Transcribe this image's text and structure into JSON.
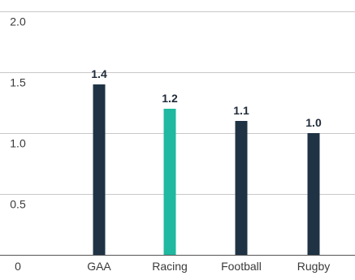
{
  "chart_data": {
    "type": "bar",
    "categories": [
      "GAA",
      "Racing",
      "Football",
      "Rugby"
    ],
    "values": [
      1.4,
      1.2,
      1.1,
      1.0
    ],
    "data_labels": [
      "1.4",
      "1.2",
      "1.1",
      "1.0"
    ],
    "y_ticks": [
      {
        "value": 0,
        "label": "0"
      },
      {
        "value": 0.5,
        "label": "0.5"
      },
      {
        "value": 1.0,
        "label": "1.0"
      },
      {
        "value": 1.5,
        "label": "1.5"
      },
      {
        "value": 2.0,
        "label": "2.0"
      }
    ],
    "ylim": [
      0,
      2.0
    ],
    "grid": true,
    "title": "",
    "xlabel": "",
    "ylabel": "",
    "colors": {
      "default_bar": "#1f3344",
      "highlight_bar": "#1fb8a0",
      "grid": "#c8c8c8",
      "text": "#3a3a3a"
    },
    "highlight_index": 1
  }
}
